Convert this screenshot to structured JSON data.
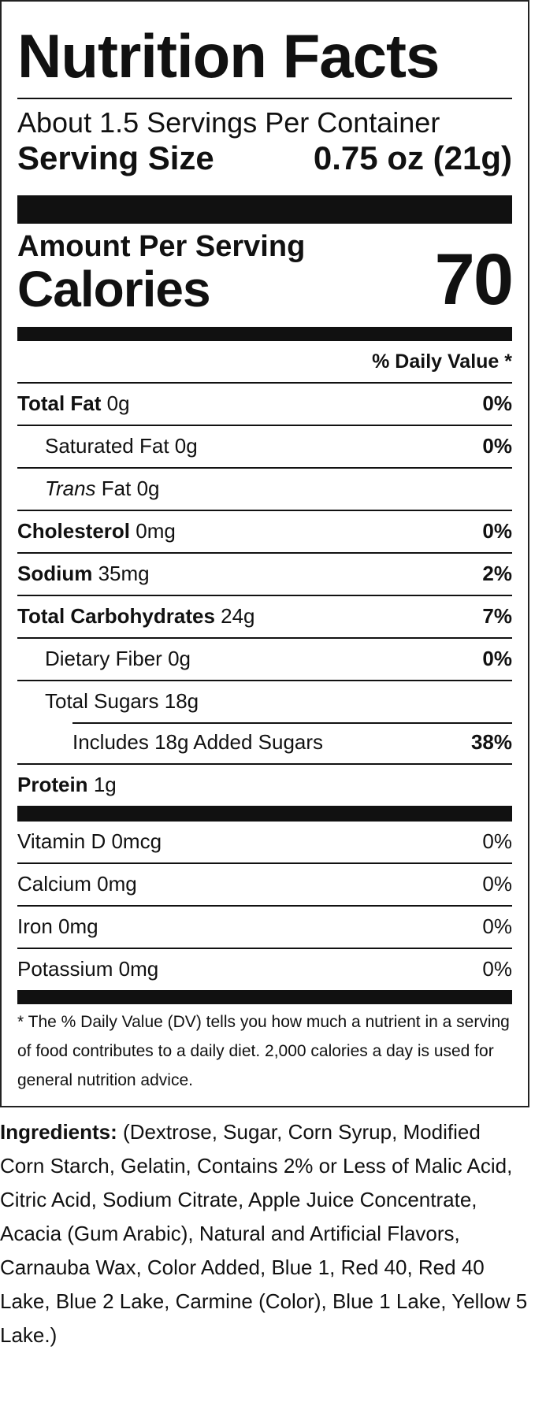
{
  "title": "Nutrition Facts",
  "servings_per_container": "About 1.5 Servings Per Container",
  "serving_size": {
    "label": "Serving Size",
    "value": "0.75 oz (21g)"
  },
  "amount_per_serving": "Amount Per Serving",
  "calories": {
    "label": "Calories",
    "value": "70"
  },
  "daily_value_header": "% Daily Value *",
  "nutrients": [
    {
      "name": "Total Fat",
      "amount": "0g",
      "dv": "0%"
    },
    {
      "name": "Saturated Fat",
      "amount": "0g",
      "dv": "0%"
    },
    {
      "name": "Trans",
      "suffix": "Fat",
      "amount": "0g",
      "dv": ""
    },
    {
      "name": "Cholesterol",
      "amount": "0mg",
      "dv": "0%"
    },
    {
      "name": "Sodium",
      "amount": "35mg",
      "dv": "2%"
    },
    {
      "name": "Total Carbohydrates",
      "amount": "24g",
      "dv": "7%"
    },
    {
      "name": "Dietary Fiber",
      "amount": "0g",
      "dv": "0%"
    },
    {
      "name": "Total Sugars",
      "amount": "18g",
      "dv": ""
    },
    {
      "text": "Includes 18g Added Sugars",
      "dv": "38%"
    },
    {
      "name": "Protein",
      "amount": "1g",
      "dv": ""
    }
  ],
  "vitamins": [
    {
      "text": "Vitamin D 0mcg",
      "dv": "0%"
    },
    {
      "text": "Calcium 0mg",
      "dv": "0%"
    },
    {
      "text": "Iron 0mg",
      "dv": "0%"
    },
    {
      "text": "Potassium 0mg",
      "dv": "0%"
    }
  ],
  "footnote": "* The % Daily Value (DV) tells you how much a nutrient in a serving of food contributes to a daily diet. 2,000 calories a day is used for general nutrition advice.",
  "ingredients": {
    "label": "Ingredients:",
    "text": "(Dextrose, Sugar, Corn Syrup, Modified Corn Starch, Gelatin, Contains 2% or Less of Malic Acid, Citric Acid, Sodium Citrate, Apple Juice Concentrate, Acacia (Gum Arabic), Natural and Artificial Flavors, Carnauba Wax, Color Added, Blue 1, Red 40, Red 40 Lake, Blue 2 Lake, Carmine (Color), Blue 1 Lake, Yellow 5 Lake.)"
  }
}
